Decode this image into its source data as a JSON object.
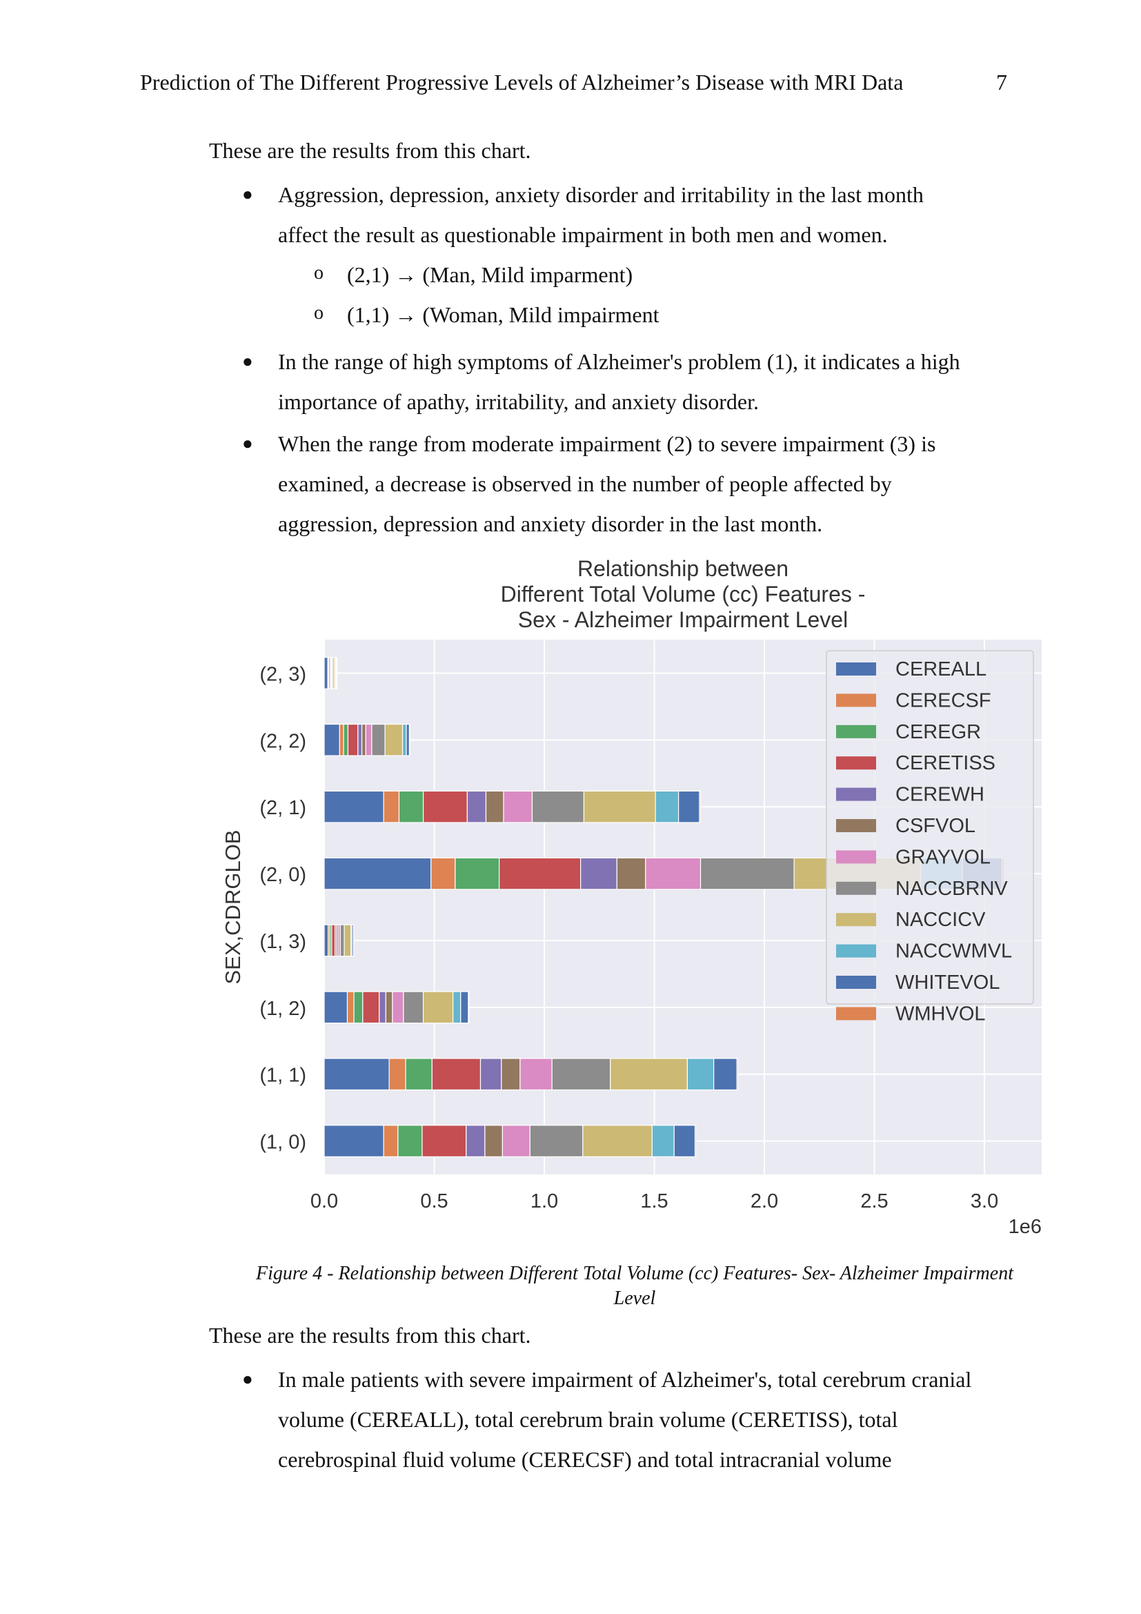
{
  "header": {
    "title": "Prediction of The Different Progressive Levels of Alzheimer’s Disease with MRI Data",
    "page_number": "7"
  },
  "intro1": "These are the results from this chart.",
  "bullets1": [
    {
      "lines": [
        "Aggression, depression, anxiety disorder and irritability in the last month",
        "affect the result as questionable impairment in both men and women."
      ]
    },
    {
      "lines": [
        "In the range of high symptoms of Alzheimer's problem (1), it indicates a high",
        "importance of apathy, irritability, and anxiety disorder."
      ]
    },
    {
      "lines": [
        "When the range from moderate impairment (2) to severe impairment (3) is",
        "examined, a decrease is observed in the number of people affected by",
        "aggression, depression and anxiety disorder in the last month."
      ]
    }
  ],
  "subbullets": [
    {
      "code": "(2,1)",
      "text": "(Man, Mild imparment)"
    },
    {
      "code": "(1,1)",
      "text": "(Woman, Mild impairment"
    }
  ],
  "caption_line1": "Figure 4 - Relationship between Different Total Volume (cc) Features- Sex- Alzheimer Impairment",
  "caption_line2": "Level",
  "intro2": "These are the results from this chart.",
  "bullets2": [
    {
      "lines": [
        "In male patients with severe impairment of Alzheimer's, total cerebrum cranial",
        "volume (CEREALL), total cerebrum brain volume (CERETISS), total",
        "cerebrospinal fluid volume (CERECSF) and total intracranial volume"
      ]
    }
  ],
  "chart_data": {
    "type": "bar",
    "orientation": "horizontal",
    "stacked": true,
    "title_lines": [
      "Relationship between",
      "Different Total Volume (cc) Features -",
      "Sex - Alzheimer Impairment Level"
    ],
    "ylabel": "SEX,CDRGLOB",
    "xlabel": "",
    "x_multiplier_label": "1e6",
    "xlim": [
      0,
      3260000
    ],
    "x_ticks": [
      0,
      500000,
      1000000,
      1500000,
      2000000,
      2500000,
      3000000
    ],
    "x_tick_labels": [
      "0.0",
      "0.5",
      "1.0",
      "1.5",
      "2.0",
      "2.5",
      "3.0"
    ],
    "grid": true,
    "legend_position": "top-right",
    "categories": [
      "(1, 0)",
      "(1, 1)",
      "(1, 2)",
      "(1, 3)",
      "(2, 0)",
      "(2, 1)",
      "(2, 2)",
      "(2, 3)"
    ],
    "series": [
      {
        "name": "CEREALL",
        "color": "#4c72b0",
        "values": [
          270000,
          295000,
          105000,
          18000,
          485000,
          270000,
          70000,
          16000
        ]
      },
      {
        "name": "CERECSF",
        "color": "#dd8452",
        "values": [
          65000,
          75000,
          30000,
          8000,
          110000,
          70000,
          18000,
          3000
        ]
      },
      {
        "name": "CEREGR",
        "color": "#55a868",
        "values": [
          110000,
          120000,
          40000,
          8000,
          200000,
          110000,
          20000,
          3000
        ]
      },
      {
        "name": "CERETISS",
        "color": "#c44e52",
        "values": [
          200000,
          220000,
          75000,
          15000,
          370000,
          200000,
          45000,
          6000
        ]
      },
      {
        "name": "CEREWH",
        "color": "#8172b3",
        "values": [
          85000,
          95000,
          30000,
          7000,
          165000,
          85000,
          18000,
          3000
        ]
      },
      {
        "name": "CSFVOL",
        "color": "#937860",
        "values": [
          80000,
          85000,
          30000,
          7000,
          130000,
          80000,
          18000,
          3000
        ]
      },
      {
        "name": "GRAYVOL",
        "color": "#da8bc3",
        "values": [
          125000,
          145000,
          50000,
          10000,
          250000,
          130000,
          27000,
          4000
        ]
      },
      {
        "name": "NACCBRNV",
        "color": "#8c8c8c",
        "values": [
          240000,
          265000,
          90000,
          18000,
          425000,
          235000,
          60000,
          6000
        ]
      },
      {
        "name": "NACCICV",
        "color": "#ccb974",
        "values": [
          315000,
          350000,
          135000,
          30000,
          575000,
          325000,
          80000,
          6000
        ]
      },
      {
        "name": "NACCWMVL",
        "color": "#64b5cd",
        "values": [
          100000,
          120000,
          35000,
          5000,
          190000,
          105000,
          17000,
          4000
        ]
      },
      {
        "name": "WHITEVOL",
        "color": "#4c72b0",
        "values": [
          95000,
          105000,
          35000,
          7000,
          180000,
          95000,
          14000,
          3000
        ]
      },
      {
        "name": "WMHVOL",
        "color": "#dd8452",
        "values": [
          5000,
          5000,
          3000,
          1000,
          10000,
          5000,
          2000,
          1000
        ]
      }
    ]
  }
}
